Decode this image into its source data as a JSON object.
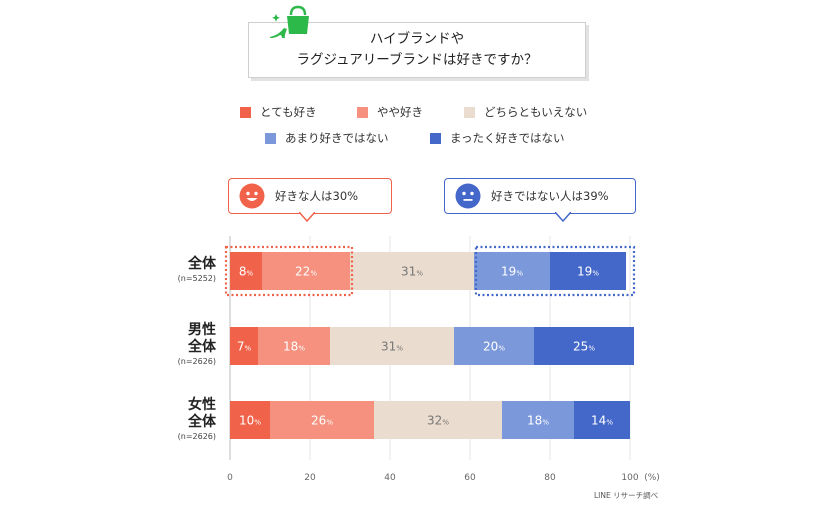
{
  "title": {
    "line1": "ハイブランドや",
    "line2": "ラグジュアリーブランドは好きですか？"
  },
  "title_icon": "handbag-and-heel-icon",
  "legend": [
    {
      "label": "とても好き",
      "color": "#f0634a"
    },
    {
      "label": "やや好き",
      "color": "#f5917e"
    },
    {
      "label": "どちらともいえない",
      "color": "#eadcce"
    },
    {
      "label": "あまり好きではない",
      "color": "#7b98da"
    },
    {
      "label": "まったく好きではない",
      "color": "#4468c9"
    }
  ],
  "callouts": {
    "like": {
      "text": "好きな人は30%",
      "color": "#f0634a",
      "icon": "smiling-face-icon"
    },
    "dislike": {
      "text": "好きではない人は39%",
      "color": "#4468c9",
      "icon": "neutral-face-icon"
    }
  },
  "groups": [
    {
      "label_lines": [
        "全体"
      ],
      "n": "(n=5252)"
    },
    {
      "label_lines": [
        "男性",
        "全体"
      ],
      "n": "(n=2626)"
    },
    {
      "label_lines": [
        "女性",
        "全体"
      ],
      "n": "(n=2626)"
    }
  ],
  "credit": "LINE リサーチ調べ",
  "chart_data": {
    "type": "bar",
    "orientation": "horizontal-stacked",
    "categories": [
      "全体",
      "男性全体",
      "女性全体"
    ],
    "series": [
      {
        "name": "とても好き",
        "values": [
          8,
          7,
          10
        ]
      },
      {
        "name": "やや好き",
        "values": [
          22,
          18,
          26
        ]
      },
      {
        "name": "どちらともいえない",
        "values": [
          31,
          31,
          32
        ]
      },
      {
        "name": "あまり好きではない",
        "values": [
          19,
          20,
          18
        ]
      },
      {
        "name": "まったく好きではない",
        "values": [
          19,
          25,
          14
        ]
      }
    ],
    "xlim": [
      0,
      100
    ],
    "xticks": [
      0,
      20,
      40,
      60,
      80,
      100
    ],
    "xunit": "(%)",
    "value_suffix": "%",
    "legend_position": "top",
    "grid": true
  }
}
